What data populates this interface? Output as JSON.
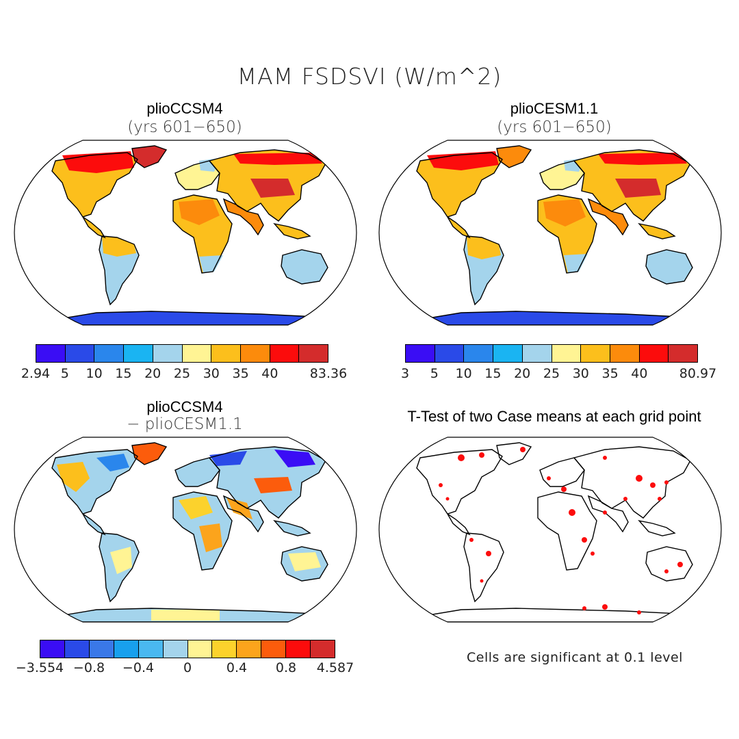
{
  "title": "MAM FSDSVI (W/m^2)",
  "panels": [
    {
      "title": "plioCCSM4",
      "subtitle": "(yrs 601−650)"
    },
    {
      "title": "plioCESM1.1",
      "subtitle": "(yrs 601−650)"
    },
    {
      "title": "plioCCSM4",
      "subtitle": "− plioCESM1.1"
    },
    {
      "title": "T-Test of two Case means at each grid point",
      "subtitle": ""
    }
  ],
  "colorbars": [
    {
      "colors": [
        "#3a0df5",
        "#2a4ae8",
        "#2a86ec",
        "#1ab4f2",
        "#a4d4ec",
        "#fff494",
        "#fcbf1c",
        "#fc8b0c",
        "#fc0c0c",
        "#d42c2c"
      ],
      "labels": [
        "2.94",
        "5",
        "10",
        "15",
        "20",
        "25",
        "30",
        "35",
        "40",
        "83.36"
      ]
    },
    {
      "colors": [
        "#3a0df5",
        "#2a4ae8",
        "#2a86ec",
        "#1ab4f2",
        "#a4d4ec",
        "#fff494",
        "#fcbf1c",
        "#fc8b0c",
        "#fc0c0c",
        "#d42c2c"
      ],
      "labels": [
        "3",
        "5",
        "10",
        "15",
        "20",
        "25",
        "30",
        "35",
        "40",
        "80.97"
      ]
    },
    {
      "colors": [
        "#3a0df5",
        "#2a4ae8",
        "#3a78e8",
        "#18a0ee",
        "#4ab8f0",
        "#a4d4ec",
        "#fff494",
        "#fcd22c",
        "#fca41c",
        "#fc5c0c",
        "#fc0c0c",
        "#d42c2c"
      ],
      "labels": [
        "−3.554",
        "−0.8",
        "−0.4",
        "0",
        "0.4",
        "0.8",
        "4.587"
      ]
    }
  ],
  "note": "Cells are significant at 0.1 level"
}
